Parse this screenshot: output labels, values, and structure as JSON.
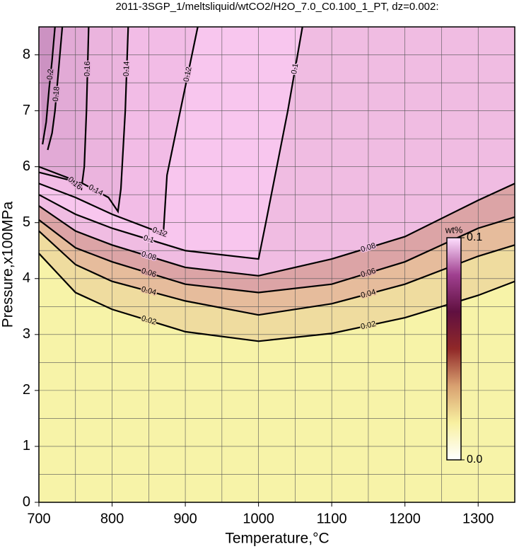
{
  "chart_data": {
    "type": "contour",
    "title": "2011-3SGP_1/meltsliquid/wtCO2/H2O_7.0_C0.100_1_PT, dz=0.002:",
    "xlabel": "Temperature,°C",
    "ylabel": "Pressure,x100MPa",
    "xlim": [
      700,
      1350
    ],
    "ylim": [
      0,
      8.5
    ],
    "xticks": [
      700,
      800,
      900,
      1000,
      1100,
      1200,
      1300
    ],
    "yticks": [
      0,
      1,
      2,
      3,
      4,
      5,
      6,
      7,
      8
    ],
    "xgrid": [
      750,
      800,
      850,
      900,
      950,
      1000,
      1050,
      1100,
      1150,
      1200,
      1250,
      1300
    ],
    "ygrid": [
      0.5,
      1,
      1.5,
      2,
      2.5,
      3,
      3.5,
      4,
      4.5,
      5,
      5.5,
      6,
      6.5,
      7,
      7.5,
      8
    ],
    "base_color": "#f7f3a8",
    "line_color": "#000000",
    "contours": [
      {
        "level": 0.02,
        "fill": "#efdc9f",
        "x": [
          700,
          750,
          800,
          900,
          1000,
          1100,
          1200,
          1300,
          1350
        ],
        "y": [
          4.45,
          3.75,
          3.45,
          3.05,
          2.88,
          3.02,
          3.3,
          3.7,
          3.95
        ]
      },
      {
        "level": 0.04,
        "fill": "#e6bc9c",
        "x": [
          700,
          750,
          800,
          900,
          1000,
          1100,
          1200,
          1300,
          1350
        ],
        "y": [
          4.85,
          4.25,
          3.95,
          3.6,
          3.35,
          3.55,
          3.9,
          4.4,
          4.6
        ]
      },
      {
        "level": 0.06,
        "fill": "#dca4a6",
        "x": [
          700,
          750,
          800,
          900,
          1000,
          1100,
          1200,
          1300,
          1350
        ],
        "y": [
          5.05,
          4.55,
          4.3,
          3.9,
          3.75,
          3.9,
          4.3,
          4.9,
          5.1
        ]
      },
      {
        "level": 0.08,
        "fill": "#f0bce2",
        "x": [
          700,
          750,
          800,
          900,
          1000,
          1100,
          1200,
          1300,
          1350
        ],
        "y": [
          5.3,
          4.85,
          4.6,
          4.2,
          4.05,
          4.35,
          4.75,
          5.4,
          5.7
        ]
      },
      {
        "level": 0.1,
        "fill": "#f8c6ee",
        "x": [
          700,
          750,
          800,
          900,
          1000,
          1010,
          1040,
          1060
        ],
        "y": [
          5.5,
          5.15,
          4.9,
          4.5,
          4.35,
          5.0,
          7.0,
          8.5
        ]
      },
      {
        "level": 0.12,
        "fill": "#f2bce6",
        "x": [
          700,
          750,
          800,
          860,
          870,
          875,
          890,
          917
        ],
        "y": [
          5.7,
          5.45,
          5.15,
          4.85,
          4.8,
          5.85,
          6.8,
          8.5
        ]
      },
      {
        "level": 0.14,
        "fill": "#ebb4de",
        "x": [
          700,
          760,
          795,
          808,
          812,
          818,
          822
        ],
        "y": [
          5.9,
          5.7,
          5.45,
          5.2,
          5.6,
          7.0,
          8.5
        ]
      },
      {
        "level": 0.16,
        "fill": "#e2aad6",
        "x": [
          700,
          740,
          758,
          762,
          765,
          768
        ],
        "y": [
          6.0,
          5.8,
          5.6,
          6.0,
          7.0,
          8.5
        ]
      },
      {
        "level": 0.18,
        "fill": "#d89ecc",
        "x": [
          712,
          718,
          722,
          726,
          732
        ],
        "y": [
          6.3,
          6.6,
          7.0,
          7.6,
          8.5
        ]
      },
      {
        "level": 0.2,
        "fill": "#cc92c2",
        "x": [
          705,
          710,
          714,
          718,
          722
        ],
        "y": [
          6.4,
          6.8,
          7.4,
          7.9,
          8.5
        ]
      }
    ],
    "colorbar": {
      "label": "wt%",
      "lim": [
        0,
        0.1
      ],
      "ticks": [
        {
          "value": 0,
          "label": "0.0"
        },
        0.1
      ],
      "colors": [
        "#ffffff",
        "#f8f0a0",
        "#d8a070",
        "#902828",
        "#601040",
        "#a04090",
        "#ffe0ff"
      ]
    }
  }
}
